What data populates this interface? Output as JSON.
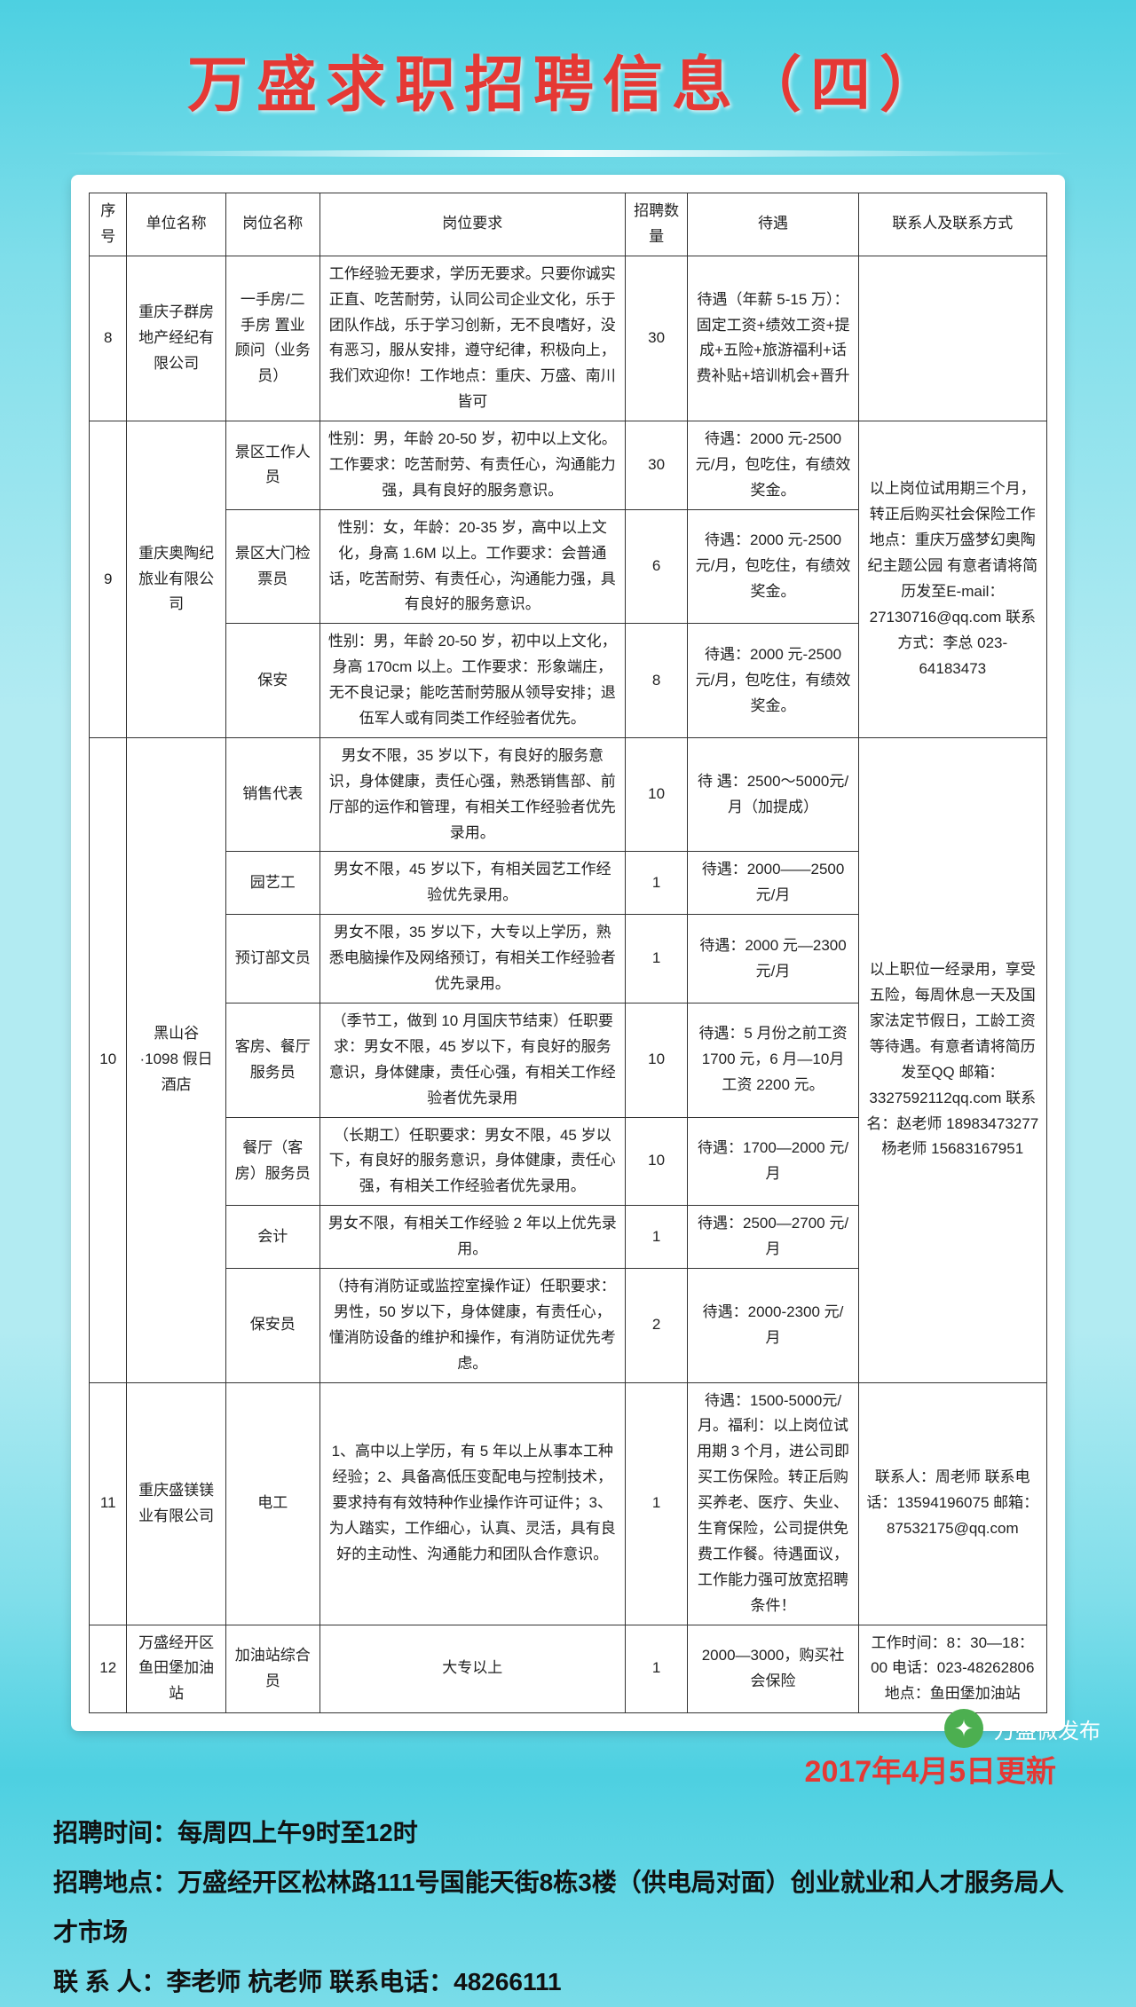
{
  "title": "万盛求职招聘信息（四）",
  "columns": [
    "序号",
    "单位名称",
    "岗位名称",
    "岗位要求",
    "招聘数量",
    "待遇",
    "联系人及联系方式"
  ],
  "rows": {
    "r8": {
      "idx": "8",
      "company": "重庆子群房地产经纪有限公司",
      "pos": "一手房/二手房 置业顾问（业务员）",
      "req": "工作经验无要求，学历无要求。只要你诚实正直、吃苦耐劳，认同公司企业文化，乐于团队作战，乐于学习创新，无不良嗜好，没有恶习，服从安排，遵守纪律，积极向上，我们欢迎你！工作地点：重庆、万盛、南川皆可",
      "num": "30",
      "pay": "待遇（年薪 5-15 万）：固定工资+绩效工资+提成+五险+旅游福利+话费补贴+培训机会+晋升",
      "contact": ""
    },
    "r9": {
      "idx": "9",
      "company": "重庆奥陶纪旅业有限公司",
      "p1": {
        "pos": "景区工作人员",
        "req": "性别：男，年龄 20-50 岁，初中以上文化。工作要求：吃苦耐劳、有责任心，沟通能力强，具有良好的服务意识。",
        "num": "30",
        "pay": "待遇：2000 元-2500元/月，包吃住，有绩效奖金。"
      },
      "p2": {
        "pos": "景区大门检票员",
        "req": "性别：女，年龄：20-35 岁，高中以上文化，身高 1.6M 以上。工作要求：会普通话，吃苦耐劳、有责任心，沟通能力强，具有良好的服务意识。",
        "num": "6",
        "pay": "待遇：2000 元-2500元/月，包吃住，有绩效奖金。"
      },
      "p3": {
        "pos": "保安",
        "req": "性别：男，年龄 20-50 岁，初中以上文化，身高 170cm 以上。工作要求：形象端庄，无不良记录；能吃苦耐劳服从领导安排；退伍军人或有同类工作经验者优先。",
        "num": "8",
        "pay": "待遇：2000 元-2500元/月，包吃住，有绩效奖金。"
      },
      "contact": "以上岗位试用期三个月，转正后购买社会保险工作地点：重庆万盛梦幻奥陶纪主题公园 有意者请将简历发至E-mail：27130716@qq.com 联系方式：李总 023-64183473"
    },
    "r10": {
      "idx": "10",
      "company": "黑山谷·1098 假日酒店",
      "p1": {
        "pos": "销售代表",
        "req": "男女不限，35 岁以下，有良好的服务意识，身体健康，责任心强，熟悉销售部、前厅部的运作和管理，有相关工作经验者优先录用。",
        "num": "10",
        "pay": "待 遇：2500～5000元/月（加提成）"
      },
      "p2": {
        "pos": "园艺工",
        "req": "男女不限，45 岁以下，有相关园艺工作经验优先录用。",
        "num": "1",
        "pay": "待遇：2000——2500元/月"
      },
      "p3": {
        "pos": "预订部文员",
        "req": "男女不限，35 岁以下，大专以上学历，熟悉电脑操作及网络预订，有相关工作经验者优先录用。",
        "num": "1",
        "pay": "待遇：2000 元—2300元/月"
      },
      "p4": {
        "pos": "客房、餐厅服务员",
        "req": "（季节工，做到 10 月国庆节结束）任职要求：男女不限，45 岁以下，有良好的服务意识，身体健康，责任心强，有相关工作经验者优先录用",
        "num": "10",
        "pay": "待遇：5 月份之前工资 1700 元，6 月—10月工资 2200 元。"
      },
      "p5": {
        "pos": "餐厅（客房）服务员",
        "req": "（长期工）任职要求：男女不限，45 岁以下，有良好的服务意识，身体健康，责任心强，有相关工作经验者优先录用。",
        "num": "10",
        "pay": "待遇：1700—2000 元/月"
      },
      "p6": {
        "pos": "会计",
        "req": "男女不限，有相关工作经验 2 年以上优先录用。",
        "num": "1",
        "pay": "待遇：2500—2700 元/月"
      },
      "p7": {
        "pos": "保安员",
        "req": "（持有消防证或监控室操作证）任职要求：男性，50 岁以下，身体健康，有责任心，懂消防设备的维护和操作，有消防证优先考虑。",
        "num": "2",
        "pay": "待遇：2000-2300 元/月"
      },
      "contact": "以上职位一经录用，享受五险，每周休息一天及国家法定节假日，工龄工资等待遇。有意者请将简历发至QQ 邮箱：3327592112qq.com 联系名：赵老师 18983473277 杨老师 15683167951"
    },
    "r11": {
      "idx": "11",
      "company": "重庆盛镁镁业有限公司",
      "pos": "电工",
      "req": "1、高中以上学历，有 5 年以上从事本工种经验；2、具备高低压变配电与控制技术，要求持有有效特种作业操作许可证件；3、为人踏实，工作细心，认真、灵活，具有良好的主动性、沟通能力和团队合作意识。",
      "num": "1",
      "pay": "待遇：1500-5000元/月。福利：以上岗位试用期 3 个月，进公司即买工伤保险。转正后购买养老、医疗、失业、生育保险，公司提供免费工作餐。待遇面议，工作能力强可放宽招聘条件！",
      "contact": "联系人：周老师 联系电话：13594196075 邮箱：87532175@qq.com"
    },
    "r12": {
      "idx": "12",
      "company": "万盛经开区鱼田堡加油站",
      "pos": "加油站综合员",
      "req": "大专以上",
      "num": "1",
      "pay": "2000—3000，购买社会保险",
      "contact": "工作时间：8：30—18：00 电话：023-48262806 地点：鱼田堡加油站"
    }
  },
  "update_date": "2017年4月5日更新",
  "footer": {
    "l1": "招聘时间：每周四上午9时至12时",
    "l2": "招聘地点：万盛经开区松林路111号国能天街8栋3楼（供电局对面）创业就业和人才服务局人才市场",
    "l3": "联 系 人：李老师  杭老师        联系电话：48266111"
  },
  "watermark": "万盛微发布"
}
